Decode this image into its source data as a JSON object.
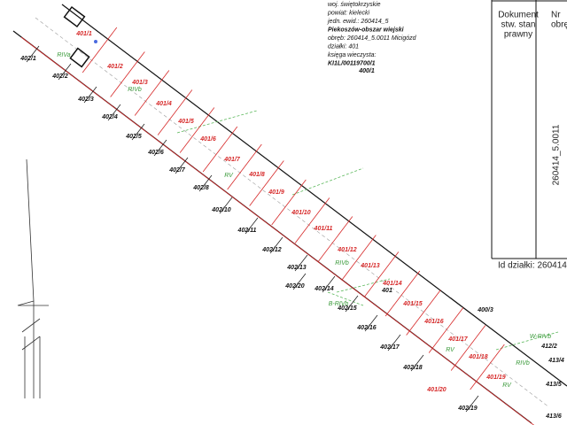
{
  "header_info": [
    "woj. świętokrzyskie",
    "powiat: kielecki",
    "jedn. ewid.: 260414_5",
    "Piekoszów-obszar wiejski",
    "obręb: 260414_5.0011 Micigózd",
    "działki: 401",
    "księga wieczysta:",
    "KI1L/00119700/1"
  ],
  "table": {
    "column_1_header": [
      "Dokument",
      "stw. stan",
      "prawny"
    ],
    "column_2_header": [
      "Nr",
      "obręb"
    ],
    "obreb_number": "260414_5.0011",
    "footer": "Id działki: 260414"
  },
  "parcel": "401",
  "new_parcels": [
    "401/1",
    "401/2",
    "401/3",
    "401/4",
    "401/5",
    "401/6",
    "401/7",
    "401/8",
    "401/9",
    "401/10",
    "401/11",
    "401/12",
    "401/13",
    "401/14",
    "401/15",
    "401/16",
    "401/17",
    "401/18",
    "401/19",
    "401/20"
  ],
  "neighbor_parcels": [
    "402/1",
    "402/2",
    "402/3",
    "402/4",
    "402/5",
    "402/6",
    "402/7",
    "402/8",
    "402/10",
    "402/11",
    "402/12",
    "402/13",
    "402/20",
    "402/14",
    "402/15",
    "402/16",
    "402/17",
    "402/18",
    "402/19",
    "400/1",
    "400/3",
    "412/2",
    "413/4",
    "413/5",
    "413/6"
  ],
  "land_classes": [
    "RIVa",
    "RIVb",
    "RV",
    "RIVb",
    "B-RIVb",
    "RV",
    "W-RIVb",
    "RIVb",
    "RV"
  ]
}
